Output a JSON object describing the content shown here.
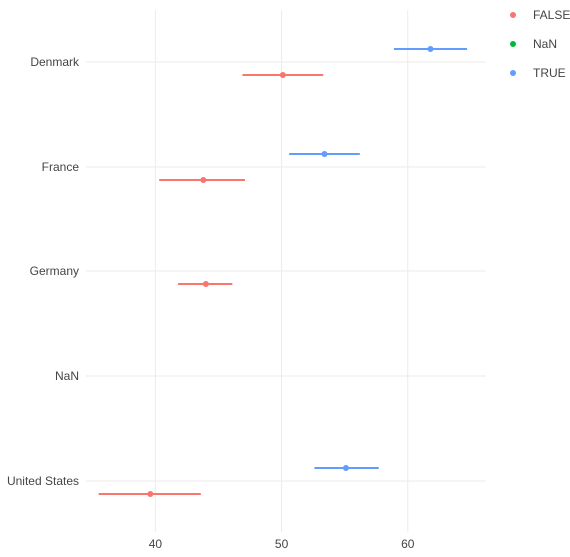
{
  "chart_data": {
    "type": "scatter",
    "subtype": "point-range",
    "title": "",
    "xlabel": "",
    "ylabel": "",
    "categories": [
      "Denmark",
      "France",
      "Germany",
      "NaN",
      "United States"
    ],
    "x_ticks": [
      40,
      50,
      60
    ],
    "xlim": [
      34.5,
      66.2
    ],
    "grid": true,
    "legend_position": "top-right",
    "series": [
      {
        "name": "FALSE",
        "color": "#F8766D",
        "points": [
          {
            "category": "Denmark",
            "x": 50.1,
            "low": 46.9,
            "high": 53.3
          },
          {
            "category": "France",
            "x": 43.8,
            "low": 40.3,
            "high": 47.1
          },
          {
            "category": "Germany",
            "x": 44.0,
            "low": 41.8,
            "high": 46.1
          },
          {
            "category": "United States",
            "x": 39.6,
            "low": 35.5,
            "high": 43.6
          }
        ]
      },
      {
        "name": "NaN",
        "color": "#00BA38",
        "points": []
      },
      {
        "name": "TRUE",
        "color": "#619CFF",
        "points": [
          {
            "category": "Denmark",
            "x": 61.8,
            "low": 58.9,
            "high": 64.7
          },
          {
            "category": "France",
            "x": 53.4,
            "low": 50.6,
            "high": 56.2
          },
          {
            "category": "United States",
            "x": 55.1,
            "low": 52.6,
            "high": 57.7
          }
        ]
      }
    ]
  }
}
